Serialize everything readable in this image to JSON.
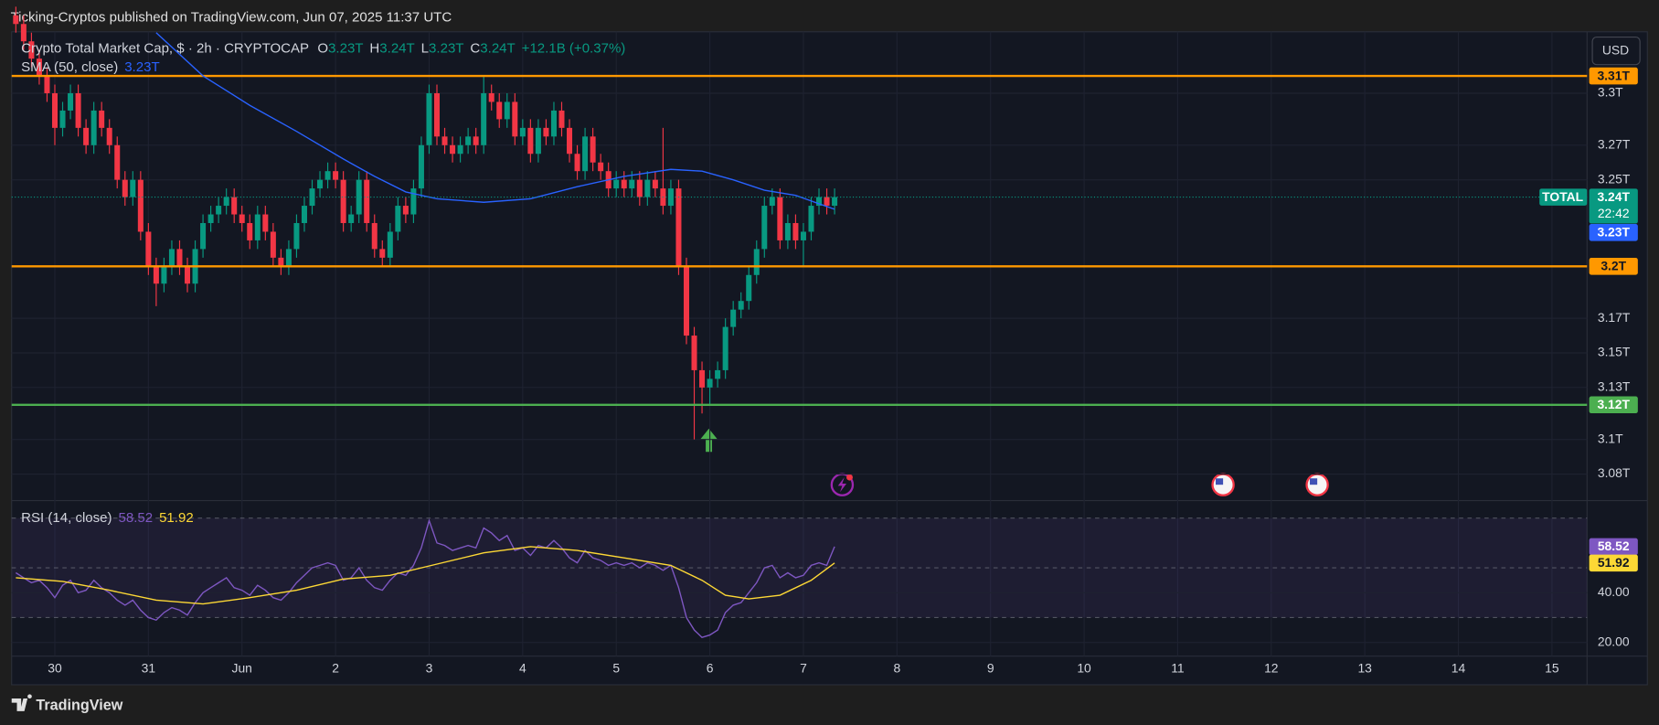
{
  "header": {
    "publisher": "Ticking-Cryptos published on TradingView.com, Jun 07, 2025 11:37 UTC",
    "logo": "TradingView",
    "currency": "USD"
  },
  "chart_data": [
    {
      "type": "candlestick",
      "title": "Crypto Total Market Cap, $ · 2h · CRYPTOCAP",
      "ohlc_legend": [
        {
          "label": "O",
          "value": "3.23T"
        },
        {
          "label": "H",
          "value": "3.24T"
        },
        {
          "label": "L",
          "value": "3.23T"
        },
        {
          "label": "C",
          "value": "3.24T"
        }
      ],
      "change": "+12.1B (+0.37%)",
      "up_color": "#089981",
      "down_color": "#f23645",
      "grid": true,
      "xlim": [
        -0.54,
        201.5
      ],
      "xticks": [
        {
          "value": 5,
          "label": "30"
        },
        {
          "value": 17,
          "label": "31"
        },
        {
          "value": 29,
          "label": "Jun"
        },
        {
          "value": 41,
          "label": "2"
        },
        {
          "value": 53,
          "label": "3"
        },
        {
          "value": 65,
          "label": "4"
        },
        {
          "value": 77,
          "label": "5"
        },
        {
          "value": 89,
          "label": "6"
        },
        {
          "value": 101,
          "label": "7"
        },
        {
          "value": 113,
          "label": "8"
        },
        {
          "value": 125,
          "label": "9"
        },
        {
          "value": 137,
          "label": "10"
        },
        {
          "value": 149,
          "label": "11"
        },
        {
          "value": 161,
          "label": "12"
        },
        {
          "value": 173,
          "label": "13"
        },
        {
          "value": 185,
          "label": "14"
        },
        {
          "value": 197,
          "label": "15"
        }
      ],
      "ylim": [
        3.0665,
        3.3355
      ],
      "yticks": [
        {
          "value": 3.3,
          "label": "3.3T"
        },
        {
          "value": 3.27,
          "label": "3.27T"
        },
        {
          "value": 3.25,
          "label": "3.25T"
        },
        {
          "value": 3.17,
          "label": "3.17T"
        },
        {
          "value": 3.15,
          "label": "3.15T"
        },
        {
          "value": 3.13,
          "label": "3.13T"
        },
        {
          "value": 3.1,
          "label": "3.1T"
        },
        {
          "value": 3.08,
          "label": "3.08T"
        }
      ],
      "candles": [
        [
          3.345,
          3.35,
          3.335,
          3.34
        ],
        [
          3.34,
          3.345,
          3.325,
          3.33
        ],
        [
          3.33,
          3.335,
          3.315,
          3.32
        ],
        [
          3.32,
          3.325,
          3.305,
          3.31
        ],
        [
          3.31,
          3.315,
          3.295,
          3.3
        ],
        [
          3.3,
          3.305,
          3.27,
          3.28
        ],
        [
          3.28,
          3.295,
          3.275,
          3.29
        ],
        [
          3.29,
          3.305,
          3.285,
          3.3
        ],
        [
          3.3,
          3.305,
          3.275,
          3.28
        ],
        [
          3.28,
          3.285,
          3.265,
          3.27
        ],
        [
          3.27,
          3.295,
          3.265,
          3.29
        ],
        [
          3.29,
          3.295,
          3.275,
          3.28
        ],
        [
          3.28,
          3.285,
          3.265,
          3.27
        ],
        [
          3.27,
          3.275,
          3.245,
          3.25
        ],
        [
          3.25,
          3.255,
          3.235,
          3.24
        ],
        [
          3.24,
          3.255,
          3.235,
          3.25
        ],
        [
          3.25,
          3.255,
          3.215,
          3.22
        ],
        [
          3.22,
          3.225,
          3.195,
          3.2
        ],
        [
          3.2,
          3.205,
          3.177,
          3.19
        ],
        [
          3.19,
          3.205,
          3.185,
          3.2
        ],
        [
          3.2,
          3.215,
          3.195,
          3.21
        ],
        [
          3.21,
          3.215,
          3.195,
          3.2
        ],
        [
          3.2,
          3.205,
          3.185,
          3.19
        ],
        [
          3.19,
          3.215,
          3.185,
          3.21
        ],
        [
          3.21,
          3.23,
          3.205,
          3.225
        ],
        [
          3.225,
          3.235,
          3.22,
          3.23
        ],
        [
          3.23,
          3.24,
          3.225,
          3.235
        ],
        [
          3.235,
          3.245,
          3.23,
          3.24
        ],
        [
          3.24,
          3.245,
          3.225,
          3.23
        ],
        [
          3.23,
          3.235,
          3.22,
          3.225
        ],
        [
          3.225,
          3.23,
          3.21,
          3.215
        ],
        [
          3.215,
          3.235,
          3.21,
          3.23
        ],
        [
          3.23,
          3.235,
          3.215,
          3.22
        ],
        [
          3.22,
          3.225,
          3.2,
          3.205
        ],
        [
          3.205,
          3.21,
          3.195,
          3.2
        ],
        [
          3.2,
          3.215,
          3.195,
          3.21
        ],
        [
          3.21,
          3.23,
          3.205,
          3.225
        ],
        [
          3.225,
          3.24,
          3.22,
          3.235
        ],
        [
          3.235,
          3.25,
          3.23,
          3.245
        ],
        [
          3.245,
          3.255,
          3.24,
          3.25
        ],
        [
          3.25,
          3.26,
          3.245,
          3.255
        ],
        [
          3.255,
          3.26,
          3.245,
          3.25
        ],
        [
          3.25,
          3.255,
          3.22,
          3.225
        ],
        [
          3.225,
          3.235,
          3.22,
          3.23
        ],
        [
          3.23,
          3.255,
          3.225,
          3.25
        ],
        [
          3.25,
          3.255,
          3.22,
          3.225
        ],
        [
          3.225,
          3.23,
          3.205,
          3.21
        ],
        [
          3.21,
          3.215,
          3.2,
          3.205
        ],
        [
          3.205,
          3.225,
          3.2,
          3.22
        ],
        [
          3.22,
          3.24,
          3.215,
          3.235
        ],
        [
          3.235,
          3.24,
          3.225,
          3.23
        ],
        [
          3.23,
          3.25,
          3.225,
          3.245
        ],
        [
          3.245,
          3.275,
          3.24,
          3.27
        ],
        [
          3.27,
          3.305,
          3.265,
          3.3
        ],
        [
          3.3,
          3.305,
          3.27,
          3.275
        ],
        [
          3.275,
          3.28,
          3.265,
          3.27
        ],
        [
          3.27,
          3.275,
          3.26,
          3.265
        ],
        [
          3.265,
          3.275,
          3.26,
          3.27
        ],
        [
          3.27,
          3.28,
          3.265,
          3.275
        ],
        [
          3.275,
          3.28,
          3.265,
          3.27
        ],
        [
          3.27,
          3.31,
          3.265,
          3.3
        ],
        [
          3.3,
          3.305,
          3.29,
          3.295
        ],
        [
          3.295,
          3.3,
          3.28,
          3.285
        ],
        [
          3.285,
          3.3,
          3.28,
          3.295
        ],
        [
          3.295,
          3.3,
          3.27,
          3.275
        ],
        [
          3.275,
          3.285,
          3.27,
          3.28
        ],
        [
          3.28,
          3.285,
          3.26,
          3.265
        ],
        [
          3.265,
          3.285,
          3.26,
          3.28
        ],
        [
          3.28,
          3.285,
          3.27,
          3.275
        ],
        [
          3.275,
          3.295,
          3.27,
          3.29
        ],
        [
          3.29,
          3.295,
          3.275,
          3.28
        ],
        [
          3.28,
          3.285,
          3.26,
          3.265
        ],
        [
          3.265,
          3.27,
          3.25,
          3.255
        ],
        [
          3.255,
          3.28,
          3.25,
          3.275
        ],
        [
          3.275,
          3.28,
          3.255,
          3.26
        ],
        [
          3.26,
          3.265,
          3.25,
          3.255
        ],
        [
          3.255,
          3.26,
          3.24,
          3.245
        ],
        [
          3.245,
          3.255,
          3.24,
          3.25
        ],
        [
          3.25,
          3.255,
          3.24,
          3.245
        ],
        [
          3.245,
          3.255,
          3.24,
          3.25
        ],
        [
          3.25,
          3.255,
          3.235,
          3.24
        ],
        [
          3.24,
          3.255,
          3.235,
          3.25
        ],
        [
          3.25,
          3.255,
          3.24,
          3.245
        ],
        [
          3.245,
          3.28,
          3.23,
          3.235
        ],
        [
          3.235,
          3.25,
          3.23,
          3.245
        ],
        [
          3.245,
          3.25,
          3.195,
          3.2
        ],
        [
          3.2,
          3.205,
          3.155,
          3.16
        ],
        [
          3.16,
          3.165,
          3.1,
          3.14
        ],
        [
          3.14,
          3.145,
          3.115,
          3.13
        ],
        [
          3.13,
          3.14,
          3.12,
          3.135
        ],
        [
          3.135,
          3.145,
          3.13,
          3.14
        ],
        [
          3.14,
          3.17,
          3.135,
          3.165
        ],
        [
          3.165,
          3.18,
          3.16,
          3.175
        ],
        [
          3.175,
          3.185,
          3.17,
          3.18
        ],
        [
          3.18,
          3.2,
          3.175,
          3.195
        ],
        [
          3.195,
          3.215,
          3.19,
          3.21
        ],
        [
          3.21,
          3.24,
          3.205,
          3.235
        ],
        [
          3.235,
          3.245,
          3.23,
          3.24
        ],
        [
          3.24,
          3.245,
          3.21,
          3.215
        ],
        [
          3.215,
          3.23,
          3.21,
          3.225
        ],
        [
          3.225,
          3.23,
          3.21,
          3.215
        ],
        [
          3.215,
          3.225,
          3.2,
          3.22
        ],
        [
          3.22,
          3.24,
          3.215,
          3.235
        ],
        [
          3.235,
          3.245,
          3.23,
          3.24
        ],
        [
          3.24,
          3.245,
          3.23,
          3.235
        ],
        [
          3.235,
          3.245,
          3.23,
          3.24
        ]
      ],
      "series": [
        {
          "name": "SMA (50, close)",
          "color": "#2962ff",
          "value_label": "3.23T",
          "x": [
            18,
            24,
            30,
            36,
            42,
            46,
            50,
            54,
            60,
            66,
            72,
            78,
            84,
            88,
            92,
            96,
            100,
            105
          ],
          "values": [
            3.335,
            3.31,
            3.293,
            3.278,
            3.262,
            3.252,
            3.243,
            3.239,
            3.237,
            3.239,
            3.246,
            3.252,
            3.256,
            3.255,
            3.25,
            3.244,
            3.241,
            3.233
          ]
        }
      ],
      "levels": [
        {
          "value": 3.31,
          "label": "3.31T",
          "color": "#ff9800"
        },
        {
          "value": 3.2,
          "label": "3.2T",
          "color": "#ff9800"
        },
        {
          "value": 3.12,
          "label": "3.12T",
          "color": "#4caf50"
        }
      ],
      "last_price": {
        "symbol": "TOTAL",
        "value": 3.24,
        "label": "3.24T",
        "countdown": "22:42"
      }
    },
    {
      "type": "line",
      "title": "RSI (14, close)",
      "xlim": [
        -0.54,
        201.5
      ],
      "ylim": [
        16.6,
        74.9
      ],
      "grid": true,
      "bands": [
        70,
        50,
        30
      ],
      "yticks": [
        {
          "value": 40,
          "label": "40.00"
        },
        {
          "value": 20,
          "label": "20.00"
        }
      ],
      "series": [
        {
          "name": "RSI",
          "color": "#7e57c2",
          "value_label": "58.52",
          "values": [
            48,
            46,
            44,
            45,
            42,
            38,
            43,
            45,
            40,
            41,
            45,
            42,
            40,
            37,
            35,
            37,
            33,
            30,
            29,
            32,
            34,
            33,
            31,
            36,
            40,
            42,
            44,
            46,
            42,
            41,
            39,
            43,
            41,
            38,
            37,
            40,
            44,
            47,
            50,
            51,
            52,
            51,
            45,
            46,
            50,
            45,
            42,
            41,
            45,
            48,
            47,
            51,
            58,
            69,
            60,
            59,
            57,
            58,
            59,
            58,
            66,
            64,
            61,
            63,
            57,
            58,
            55,
            59,
            58,
            61,
            58,
            54,
            52,
            57,
            54,
            53,
            51,
            52,
            51,
            52,
            50,
            52,
            51,
            49,
            51,
            42,
            30,
            25,
            22,
            23,
            25,
            32,
            35,
            36,
            40,
            44,
            50,
            51,
            46,
            48,
            46,
            47,
            51,
            52,
            51,
            58.52
          ]
        },
        {
          "name": "RSI MA",
          "color": "#fdd835",
          "value_label": "51.92",
          "x": [
            0,
            6,
            12,
            18,
            24,
            30,
            36,
            42,
            48,
            54,
            60,
            66,
            72,
            78,
            84,
            88,
            91,
            94,
            98,
            102,
            105
          ],
          "values": [
            46,
            44.5,
            41,
            37,
            35.5,
            38,
            41,
            45.5,
            47,
            51.5,
            56,
            58.5,
            57,
            54,
            51,
            45,
            39,
            37.5,
            39,
            45,
            51.92
          ]
        }
      ]
    }
  ]
}
